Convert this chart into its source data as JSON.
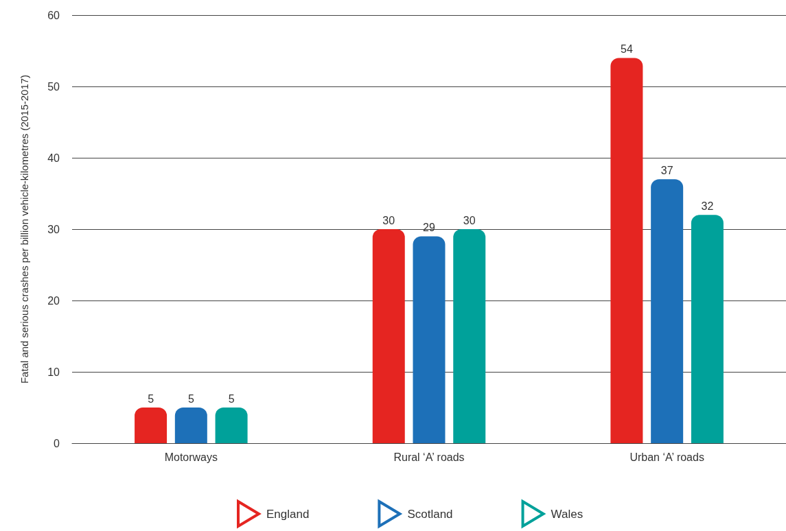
{
  "chart_data": {
    "type": "bar",
    "ylabel": "Fatal and serious crashes per billion vehicle-kilometres (2015-2017)",
    "categories": [
      "Motorways",
      "Rural ‘A’ roads",
      "Urban ‘A’ roads"
    ],
    "series": [
      {
        "name": "England",
        "color": "#e52521",
        "values": [
          5,
          30,
          54
        ]
      },
      {
        "name": "Scotland",
        "color": "#1d70b8",
        "values": [
          5,
          29,
          37
        ]
      },
      {
        "name": "Wales",
        "color": "#00a19a",
        "values": [
          5,
          30,
          32
        ]
      }
    ],
    "ylim": [
      0,
      60
    ],
    "yticks": [
      0,
      10,
      20,
      30,
      40,
      50,
      60
    ],
    "grid": "y",
    "legend": "bottom",
    "data_labels": true
  }
}
